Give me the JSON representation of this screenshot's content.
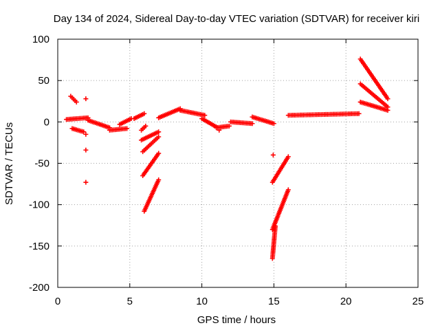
{
  "chart_data": {
    "type": "scatter",
    "title": "Day 134 of 2024, Sidereal Day-to-day VTEC variation (SDTVAR) for receiver kiri",
    "xlabel": "GPS time / hours",
    "ylabel": "SDTVAR / TECUs",
    "xlim": [
      0,
      25
    ],
    "ylim": [
      -200,
      100
    ],
    "xticks": [
      "0",
      "5",
      "10",
      "15",
      "20",
      "25"
    ],
    "yticks": [
      "-200",
      "-150",
      "-100",
      "-50",
      "0",
      "50",
      "100"
    ],
    "grid": true,
    "marker": "+",
    "color": "#ff0000",
    "segments": [
      {
        "x": [
          0.6,
          2.1
        ],
        "y": [
          3,
          5
        ]
      },
      {
        "x": [
          0.9,
          1.3
        ],
        "y": [
          31,
          24
        ]
      },
      {
        "x": [
          1.0,
          1.8
        ],
        "y": [
          -8,
          -12
        ]
      },
      {
        "x": [
          2.1,
          3.6
        ],
        "y": [
          2,
          -7
        ]
      },
      {
        "x": [
          3.6,
          4.8
        ],
        "y": [
          -10,
          -8
        ]
      },
      {
        "x": [
          4.3,
          5.1
        ],
        "y": [
          -3,
          4
        ]
      },
      {
        "x": [
          5.3,
          6.0
        ],
        "y": [
          4,
          10
        ]
      },
      {
        "x": [
          5.8,
          6.1
        ],
        "y": [
          -10,
          -5
        ]
      },
      {
        "x": [
          5.8,
          7.0
        ],
        "y": [
          -22,
          -12
        ]
      },
      {
        "x": [
          5.9,
          7.0
        ],
        "y": [
          -65,
          -38
        ]
      },
      {
        "x": [
          5.9,
          7.0
        ],
        "y": [
          -36,
          -18
        ]
      },
      {
        "x": [
          6.0,
          7.0
        ],
        "y": [
          -108,
          -70
        ]
      },
      {
        "x": [
          7.0,
          8.5
        ],
        "y": [
          5,
          16
        ]
      },
      {
        "x": [
          8.5,
          10.2
        ],
        "y": [
          14,
          8
        ]
      },
      {
        "x": [
          10.0,
          11.0
        ],
        "y": [
          4,
          -6
        ]
      },
      {
        "x": [
          11.0,
          11.9
        ],
        "y": [
          -7,
          -5
        ]
      },
      {
        "x": [
          12.0,
          13.5
        ],
        "y": [
          0,
          -2
        ]
      },
      {
        "x": [
          13.5,
          15.0
        ],
        "y": [
          6,
          -2
        ]
      },
      {
        "x": [
          14.9,
          16.0
        ],
        "y": [
          -73,
          -42
        ]
      },
      {
        "x": [
          14.9,
          16.0
        ],
        "y": [
          -130,
          -82
        ]
      },
      {
        "x": [
          14.9,
          15.1
        ],
        "y": [
          -165,
          -126
        ]
      },
      {
        "x": [
          16.0,
          20.9
        ],
        "y": [
          8,
          10
        ]
      },
      {
        "x": [
          21.0,
          22.9
        ],
        "y": [
          76,
          28
        ]
      },
      {
        "x": [
          21.0,
          22.9
        ],
        "y": [
          46,
          18
        ]
      },
      {
        "x": [
          21.0,
          22.9
        ],
        "y": [
          24,
          14
        ]
      }
    ],
    "points": [
      {
        "x": 1.95,
        "y": 28
      },
      {
        "x": 1.95,
        "y": -15
      },
      {
        "x": 1.95,
        "y": -34
      },
      {
        "x": 1.95,
        "y": -73
      },
      {
        "x": 14.95,
        "y": -40
      },
      {
        "x": 11.2,
        "y": -10
      }
    ]
  }
}
